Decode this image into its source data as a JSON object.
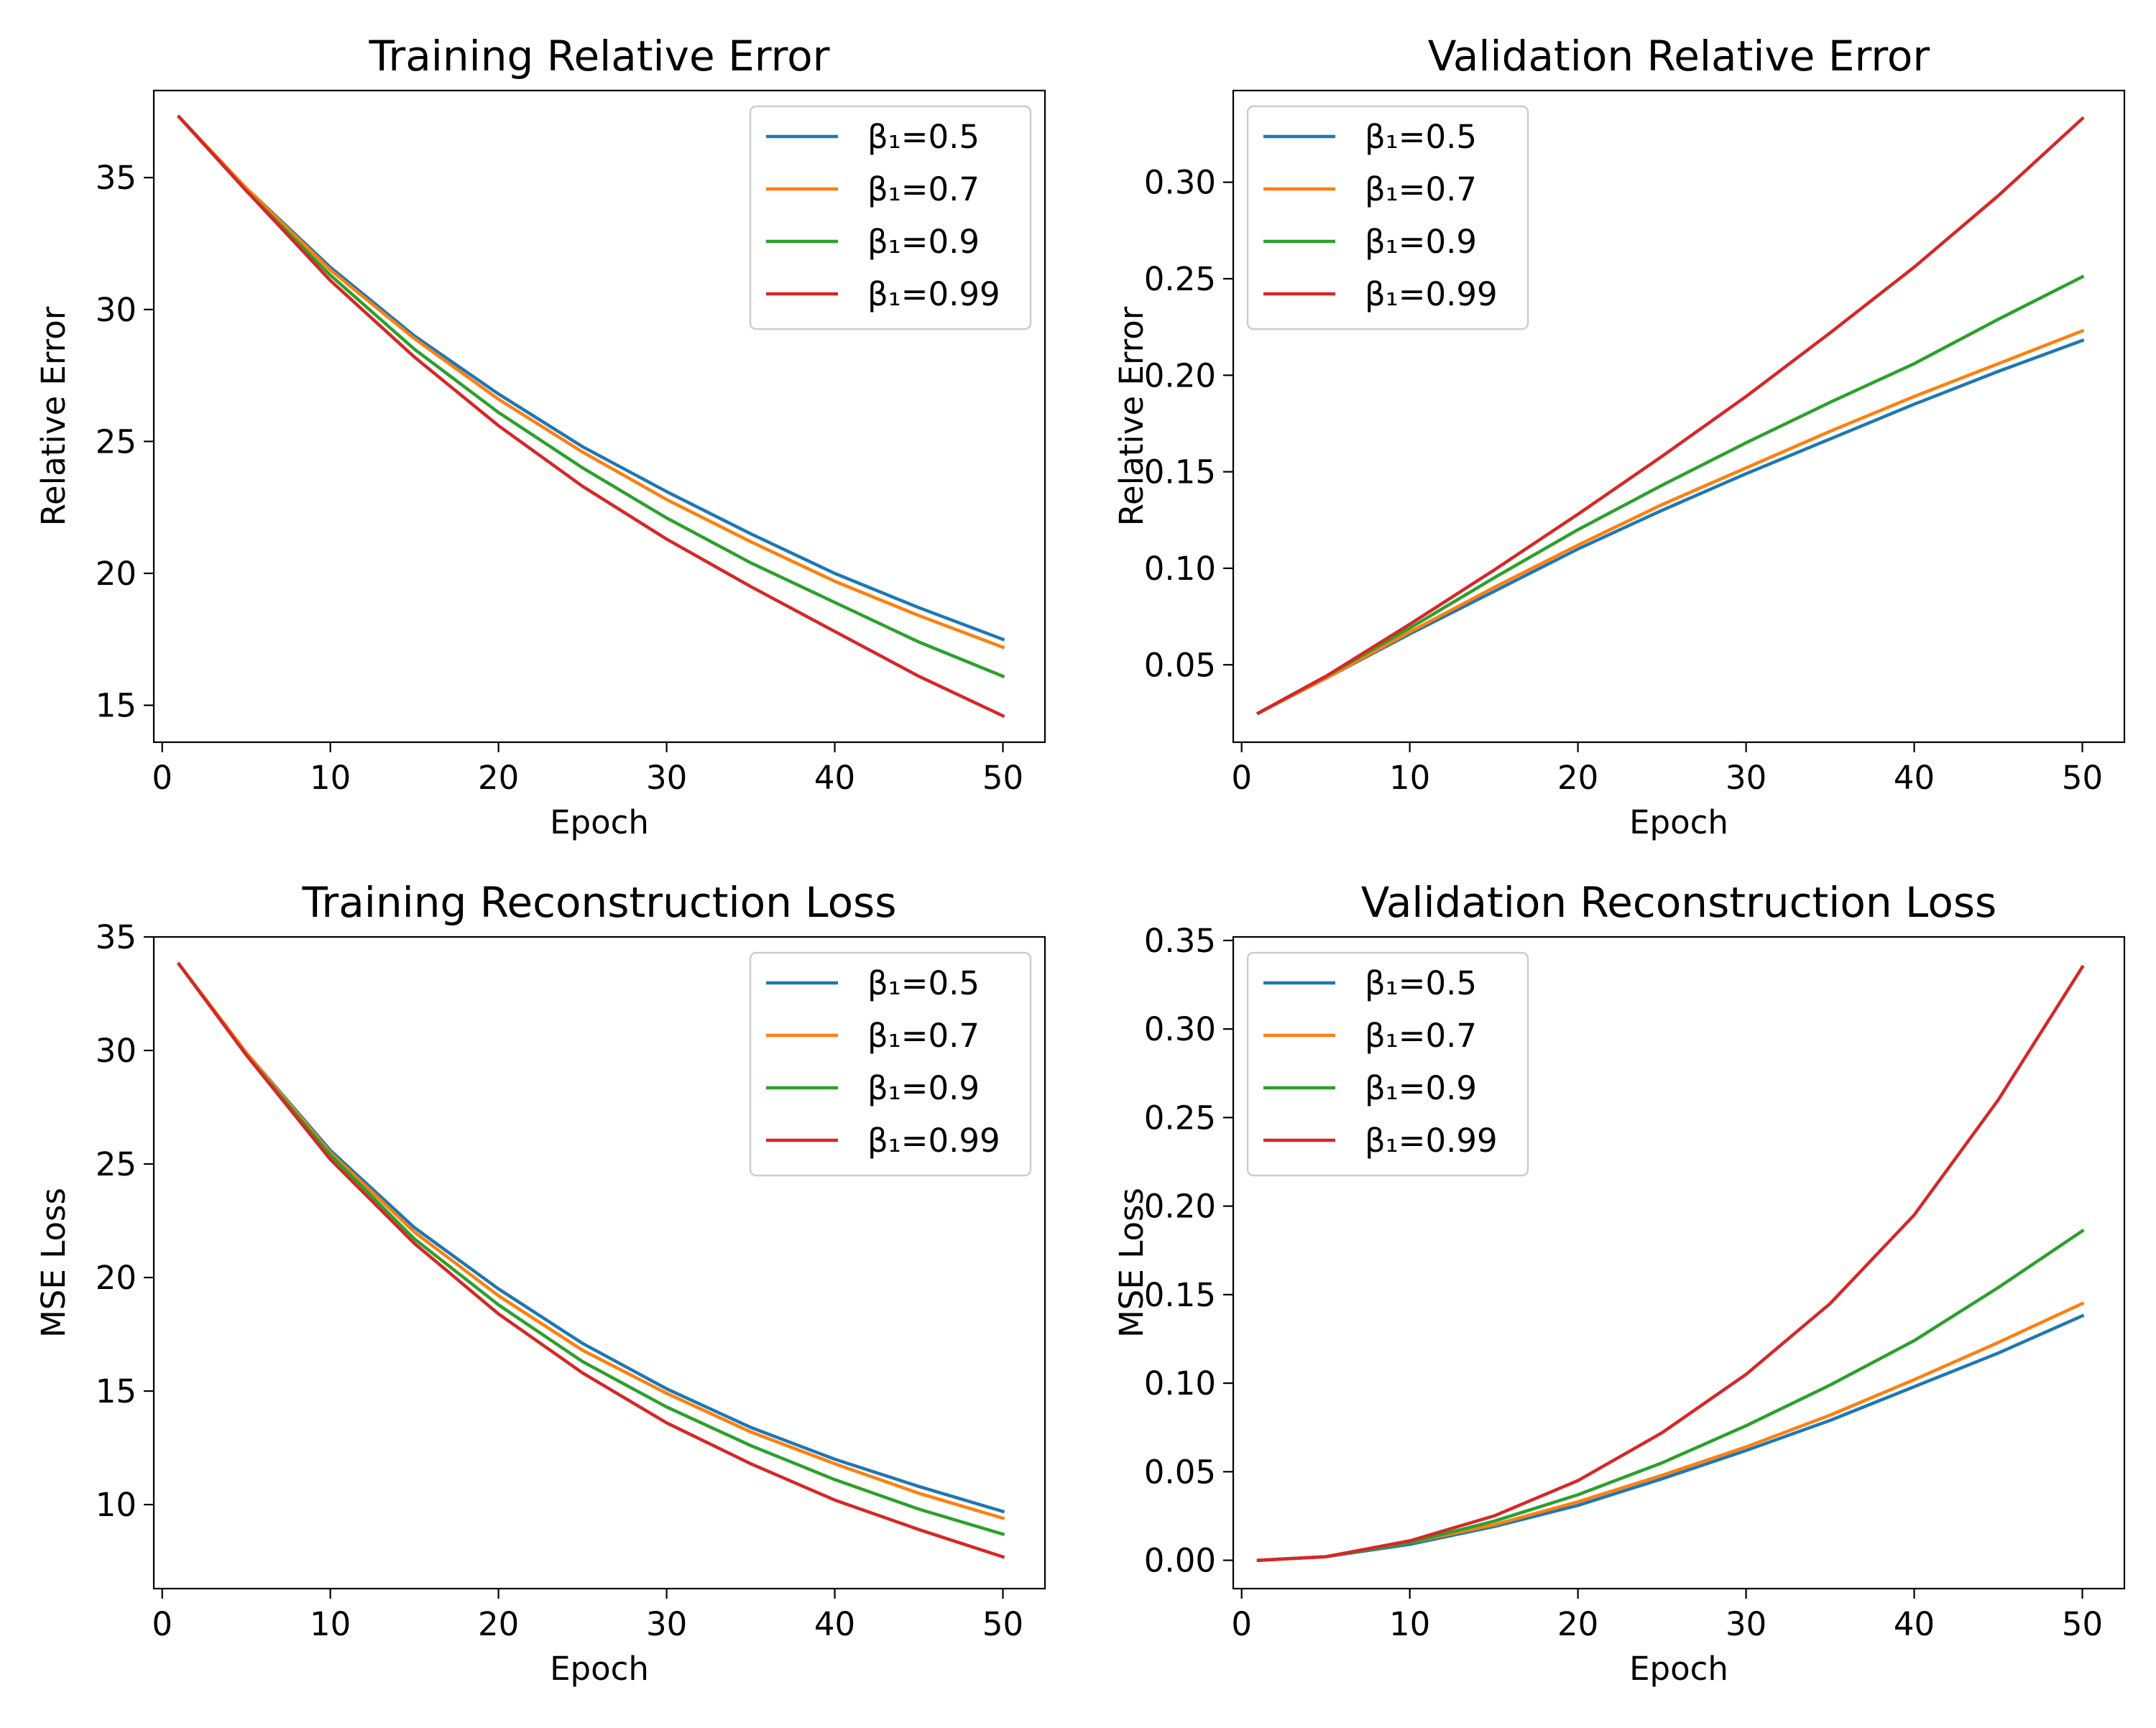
{
  "colors": {
    "series": [
      "#1f77b4",
      "#ff7f0e",
      "#2ca02c",
      "#d62728"
    ],
    "axes": "#000000",
    "legend_border": "#cccccc",
    "background": "#ffffff"
  },
  "chart_data": [
    {
      "type": "line",
      "title": "Training Relative Error",
      "xlabel": "Epoch",
      "ylabel": "Relative Error",
      "xlim": [
        -0.5,
        52.5
      ],
      "ylim": [
        13.6,
        38.3
      ],
      "xticks": [
        0,
        10,
        20,
        30,
        40,
        50
      ],
      "xtick_labels": [
        "0",
        "10",
        "20",
        "30",
        "40",
        "50"
      ],
      "yticks": [
        15,
        20,
        25,
        30,
        35
      ],
      "ytick_labels": [
        "15",
        "20",
        "25",
        "30",
        "35"
      ],
      "grid": false,
      "legend_position": "upper right",
      "series": [
        {
          "name": "β₁=0.5",
          "x": [
            1,
            5,
            10,
            15,
            20,
            25,
            30,
            35,
            40,
            45,
            50
          ],
          "y": [
            37.3,
            34.6,
            31.6,
            29.0,
            26.8,
            24.8,
            23.1,
            21.5,
            20.0,
            18.7,
            17.5
          ]
        },
        {
          "name": "β₁=0.7",
          "x": [
            1,
            5,
            10,
            15,
            20,
            25,
            30,
            35,
            40,
            45,
            50
          ],
          "y": [
            37.3,
            34.6,
            31.5,
            28.9,
            26.6,
            24.6,
            22.8,
            21.2,
            19.7,
            18.4,
            17.2
          ]
        },
        {
          "name": "β₁=0.9",
          "x": [
            1,
            5,
            10,
            15,
            20,
            25,
            30,
            35,
            40,
            45,
            50
          ],
          "y": [
            37.3,
            34.5,
            31.3,
            28.5,
            26.1,
            24.0,
            22.1,
            20.4,
            18.9,
            17.4,
            16.1
          ]
        },
        {
          "name": "β₁=0.99",
          "x": [
            1,
            5,
            10,
            15,
            20,
            25,
            30,
            35,
            40,
            45,
            50
          ],
          "y": [
            37.3,
            34.5,
            31.1,
            28.2,
            25.6,
            23.3,
            21.3,
            19.5,
            17.8,
            16.1,
            14.6
          ]
        }
      ]
    },
    {
      "type": "line",
      "title": "Validation Relative Error",
      "xlabel": "Epoch",
      "ylabel": "Relative Error",
      "xlim": [
        -0.5,
        52.5
      ],
      "ylim": [
        0.0099,
        0.3475
      ],
      "xticks": [
        0,
        10,
        20,
        30,
        40,
        50
      ],
      "xtick_labels": [
        "0",
        "10",
        "20",
        "30",
        "40",
        "50"
      ],
      "yticks": [
        0.05,
        0.1,
        0.15,
        0.2,
        0.25,
        0.3
      ],
      "ytick_labels": [
        "0.05",
        "0.10",
        "0.15",
        "0.20",
        "0.25",
        "0.30"
      ],
      "grid": false,
      "legend_position": "upper left",
      "series": [
        {
          "name": "β₁=0.5",
          "x": [
            1,
            5,
            10,
            15,
            20,
            25,
            30,
            35,
            40,
            45,
            50
          ],
          "y": [
            0.025,
            0.043,
            0.066,
            0.088,
            0.11,
            0.13,
            0.149,
            0.167,
            0.185,
            0.202,
            0.218
          ]
        },
        {
          "name": "β₁=0.7",
          "x": [
            1,
            5,
            10,
            15,
            20,
            25,
            30,
            35,
            40,
            45,
            50
          ],
          "y": [
            0.025,
            0.043,
            0.067,
            0.09,
            0.112,
            0.133,
            0.152,
            0.171,
            0.189,
            0.206,
            0.223
          ]
        },
        {
          "name": "β₁=0.9",
          "x": [
            1,
            5,
            10,
            15,
            20,
            25,
            30,
            35,
            40,
            45,
            50
          ],
          "y": [
            0.025,
            0.044,
            0.069,
            0.095,
            0.12,
            0.143,
            0.165,
            0.186,
            0.206,
            0.229,
            0.251
          ]
        },
        {
          "name": "β₁=0.99",
          "x": [
            1,
            5,
            10,
            15,
            20,
            25,
            30,
            35,
            40,
            45,
            50
          ],
          "y": [
            0.025,
            0.044,
            0.071,
            0.099,
            0.128,
            0.158,
            0.189,
            0.222,
            0.256,
            0.293,
            0.333
          ]
        }
      ]
    },
    {
      "type": "line",
      "title": "Training Reconstruction Loss",
      "xlabel": "Epoch",
      "ylabel": "MSE Loss",
      "xlim": [
        -0.5,
        52.5
      ],
      "ylim": [
        6.3,
        35.0
      ],
      "xticks": [
        0,
        10,
        20,
        30,
        40,
        50
      ],
      "xtick_labels": [
        "0",
        "10",
        "20",
        "30",
        "40",
        "50"
      ],
      "yticks": [
        10,
        15,
        20,
        25,
        30,
        35
      ],
      "ytick_labels": [
        "10",
        "15",
        "20",
        "25",
        "30",
        "35"
      ],
      "grid": false,
      "legend_position": "upper right",
      "series": [
        {
          "name": "β₁=0.5",
          "x": [
            1,
            5,
            10,
            15,
            20,
            25,
            30,
            35,
            40,
            45,
            50
          ],
          "y": [
            33.8,
            29.9,
            25.6,
            22.2,
            19.5,
            17.1,
            15.1,
            13.4,
            12.0,
            10.8,
            9.7
          ]
        },
        {
          "name": "β₁=0.7",
          "x": [
            1,
            5,
            10,
            15,
            20,
            25,
            30,
            35,
            40,
            45,
            50
          ],
          "y": [
            33.8,
            29.9,
            25.5,
            22.0,
            19.2,
            16.8,
            14.9,
            13.2,
            11.8,
            10.5,
            9.4
          ]
        },
        {
          "name": "β₁=0.9",
          "x": [
            1,
            5,
            10,
            15,
            20,
            25,
            30,
            35,
            40,
            45,
            50
          ],
          "y": [
            33.8,
            29.8,
            25.4,
            21.7,
            18.8,
            16.3,
            14.3,
            12.6,
            11.1,
            9.8,
            8.7
          ]
        },
        {
          "name": "β₁=0.99",
          "x": [
            1,
            5,
            10,
            15,
            20,
            25,
            30,
            35,
            40,
            45,
            50
          ],
          "y": [
            33.8,
            29.8,
            25.2,
            21.5,
            18.4,
            15.8,
            13.6,
            11.8,
            10.2,
            8.9,
            7.7
          ]
        }
      ]
    },
    {
      "type": "line",
      "title": "Validation Reconstruction Loss",
      "xlabel": "Epoch",
      "ylabel": "MSE Loss",
      "xlim": [
        -0.5,
        52.5
      ],
      "ylim": [
        -0.016,
        0.352
      ],
      "xticks": [
        0,
        10,
        20,
        30,
        40,
        50
      ],
      "xtick_labels": [
        "0",
        "10",
        "20",
        "30",
        "40",
        "50"
      ],
      "yticks": [
        0.0,
        0.05,
        0.1,
        0.15,
        0.2,
        0.25,
        0.3,
        0.35
      ],
      "ytick_labels": [
        "0.00",
        "0.05",
        "0.10",
        "0.15",
        "0.20",
        "0.25",
        "0.30",
        "0.35"
      ],
      "grid": false,
      "legend_position": "upper left",
      "series": [
        {
          "name": "β₁=0.5",
          "x": [
            1,
            5,
            10,
            15,
            20,
            25,
            30,
            35,
            40,
            45,
            50
          ],
          "y": [
            0.0,
            0.002,
            0.009,
            0.019,
            0.031,
            0.046,
            0.062,
            0.079,
            0.098,
            0.117,
            0.138
          ]
        },
        {
          "name": "β₁=0.7",
          "x": [
            1,
            5,
            10,
            15,
            20,
            25,
            30,
            35,
            40,
            45,
            50
          ],
          "y": [
            0.0,
            0.002,
            0.01,
            0.02,
            0.033,
            0.048,
            0.064,
            0.082,
            0.102,
            0.123,
            0.145
          ]
        },
        {
          "name": "β₁=0.9",
          "x": [
            1,
            5,
            10,
            15,
            20,
            25,
            30,
            35,
            40,
            45,
            50
          ],
          "y": [
            0.0,
            0.002,
            0.01,
            0.022,
            0.037,
            0.055,
            0.076,
            0.099,
            0.124,
            0.154,
            0.186
          ]
        },
        {
          "name": "β₁=0.99",
          "x": [
            1,
            5,
            10,
            15,
            20,
            25,
            30,
            35,
            40,
            45,
            50
          ],
          "y": [
            0.0,
            0.002,
            0.011,
            0.025,
            0.045,
            0.072,
            0.105,
            0.145,
            0.195,
            0.26,
            0.335
          ]
        }
      ]
    }
  ]
}
